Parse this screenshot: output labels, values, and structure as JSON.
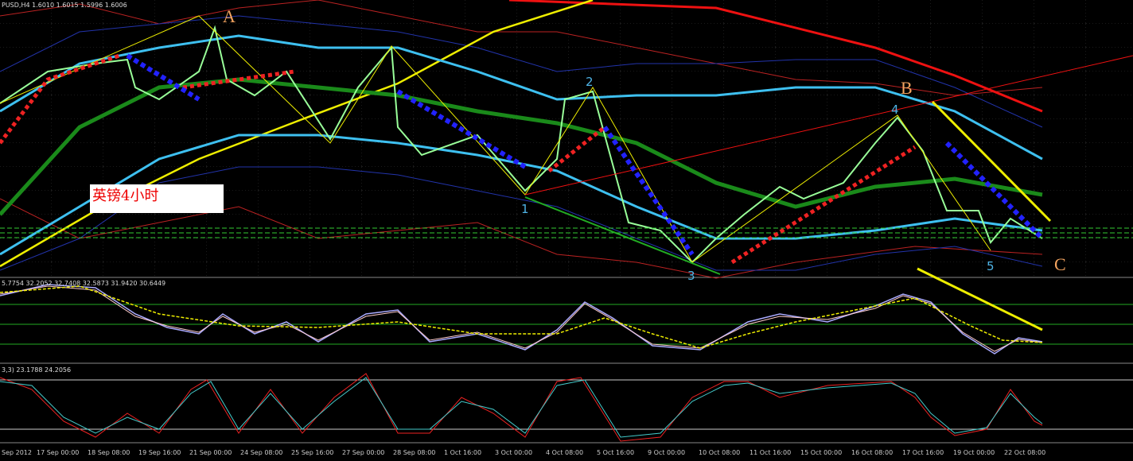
{
  "header": "PUSD,H4 1.6010 1.6015 1.5996 1.6006",
  "waves": {
    "A": "A",
    "B": "B",
    "C": "C",
    "w1": "1",
    "w2": "2",
    "w3": "3",
    "w4": "4",
    "w5": "5"
  },
  "note": "英镑4小时",
  "indicator1": "5.7754 32.2052 32.7408 32.5873 31.9420 30.6449",
  "indicator2": "3,3) 23.1788 24.2056",
  "dates": [
    "Sep 2012",
    "17 Sep 00:00",
    "18 Sep 08:00",
    "19 Sep 16:00",
    "21 Sep 00:00",
    "24 Sep 08:00",
    "25 Sep 16:00",
    "27 Sep 00:00",
    "28 Sep 08:00",
    "1 Oct 16:00",
    "3 Oct 00:00",
    "4 Oct 08:00",
    "5 Oct 16:00",
    "9 Oct 00:00",
    "10 Oct 08:00",
    "11 Oct 16:00",
    "15 Oct 00:00",
    "16 Oct 08:00",
    "17 Oct 16:00",
    "19 Oct 00:00",
    "22 Oct 08:00"
  ]
}
